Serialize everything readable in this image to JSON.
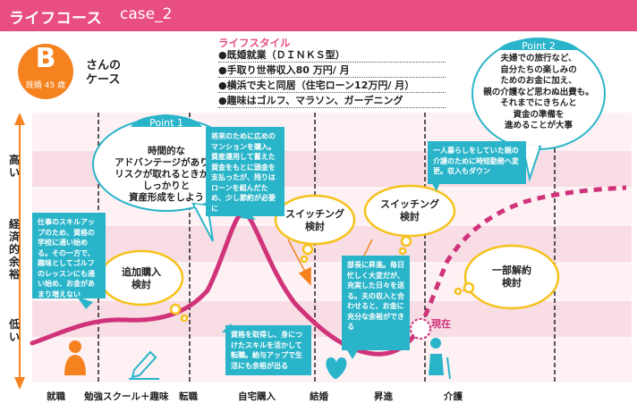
{
  "header": {
    "title": "ライフコース",
    "case_label": "case_2"
  },
  "badge": {
    "letter": "B",
    "subtitle": "既婚 45 歳"
  },
  "case_name": "さんの\nケース",
  "lifestyle": {
    "title": "ライフスタイル",
    "items": [
      "●既婚就業（ＤＩＮＫＳ型）",
      "●手取り世帯収入80 万円/ 月",
      "●横浜で夫と同居（住宅ローン12万円/ 月）",
      "●趣味はゴルフ、マラソン、ガーデニング"
    ]
  },
  "y_axis": {
    "high": "高い",
    "middle": "経済的余裕",
    "low": "低い"
  },
  "x_axis": [
    "就職",
    "勉強スクール＋趣味",
    "転職",
    "自宅購入",
    "結婚",
    "昇進",
    "介護"
  ],
  "points": [
    {
      "title": "Point 1",
      "text": "時間的な\nアドバンテージがあり、\nリスクが取れるときから\nしっかりと\n資産形成をしよう"
    },
    {
      "title": "Point 2",
      "text": "夫婦での旅行など、\n自分たちの楽しみの\nためのお金に加え、\n親の介護など思わぬ出費も。\nそれまでにきちんと\n資金の準備を\n進めることが大事"
    }
  ],
  "bubbles": [
    "追加購入\n検討",
    "スイッチング\n検討",
    "スイッチング\n検討",
    "一部解約\n検討"
  ],
  "notes": [
    "仕事のスキルアップのため、資格の学校に通い始める。その一方で、趣味としてゴルフのレッスンにも通い始め、お金があまり増えない",
    "将来のために広めのマンションを購入。資産運用して蓄えた資金をもとに頭金を支払ったが、残りはローンを組んだため、少し節約が必要に",
    "資格を取得し、身につけたスキルを活かして転職。給与アップで生活にも余裕が出る",
    "部長に昇進。毎日忙しく大変だが、充実した日々を送る。夫の収入と合わせると、お金に充分な余裕ができる",
    "一人暮らしをしていた親の介護のために時短勤務へ変更。収入もダウン"
  ],
  "now_label": "現在",
  "colors": {
    "accent": "#e94e81",
    "curve": "#d0337a",
    "orange": "#f5821f",
    "teal": "#2ab4c9",
    "band_light": "#fdf1f4",
    "band_dark": "#f8dde5"
  }
}
